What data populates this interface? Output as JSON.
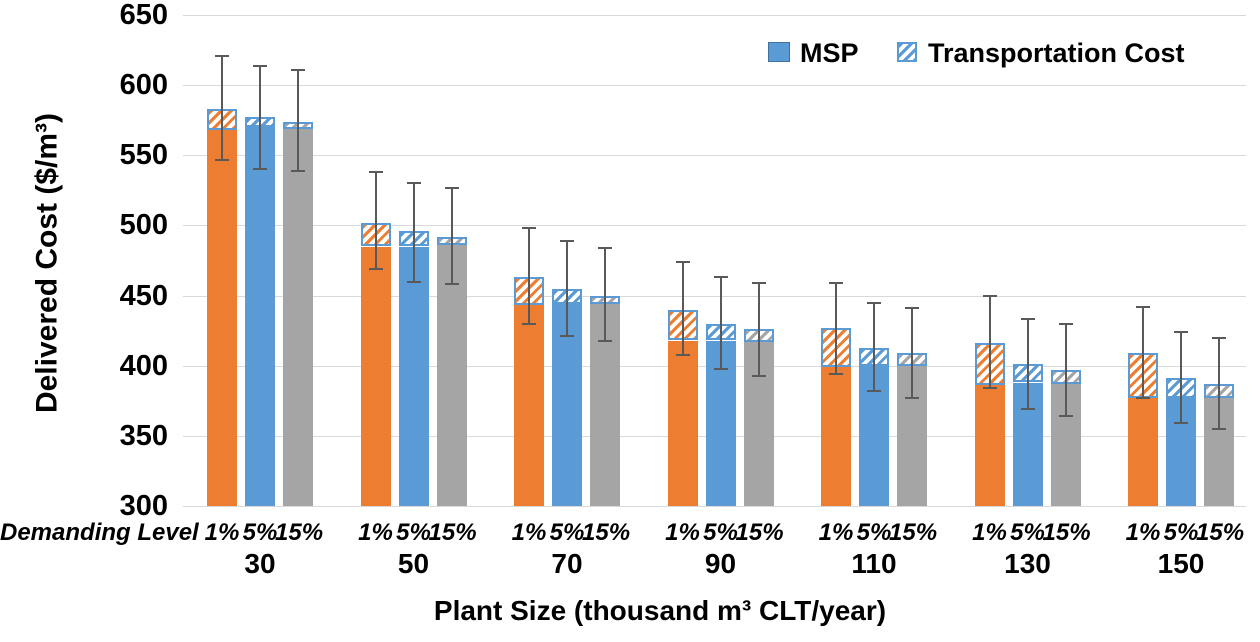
{
  "y_axis": {
    "title": "Delivered Cost ($/m³)",
    "min": 300,
    "max": 650,
    "tick_labels": [
      "650",
      "600",
      "550",
      "500",
      "450",
      "400",
      "350",
      "300"
    ]
  },
  "x_axis": {
    "title": "Plant Size (thousand m³ CLT/year)",
    "demanding_level_label": "Demanding Level",
    "categories": [
      "30",
      "50",
      "70",
      "90",
      "110",
      "130",
      "150"
    ]
  },
  "legend": {
    "items": [
      {
        "label": "MSP",
        "style": "solid"
      },
      {
        "label": "Transportation Cost",
        "style": "hatch"
      }
    ]
  },
  "colors": {
    "demand_1pct": "#ED7D31",
    "demand_5pct": "#5B9BD5",
    "demand_15pct": "#A5A5A5",
    "hatch_border": "#5B9BD5",
    "legend_solid_fill": "#5B9BD5",
    "legend_solid_border": "#41719C",
    "error_bar": "#595959",
    "gridline": "#D9D9D9",
    "text": "#000000"
  },
  "chart_data": {
    "type": "bar",
    "stacked": true,
    "unit": "$/m³",
    "ylabel": "Delivered Cost ($/m³)",
    "xlabel": "Plant Size (thousand m³ CLT/year)",
    "ylim": [
      300,
      650
    ],
    "grid": true,
    "legend_position": "top-right",
    "demanding_levels": [
      "1%",
      "5%",
      "15%"
    ],
    "series_meaning": "Each plant size has three stacked bars (demanding level 1%, 5%, 15%); stack = MSP + Transportation Cost; whiskers = error range on total delivered cost",
    "groups": [
      {
        "plant_size": "30",
        "bars": [
          {
            "demanding_level": "1%",
            "msp": 568,
            "transportation_cost": 15,
            "total": 583,
            "error_low": 547,
            "error_high": 621
          },
          {
            "demanding_level": "5%",
            "msp": 570,
            "transportation_cost": 7,
            "total": 577,
            "error_low": 540,
            "error_high": 614
          },
          {
            "demanding_level": "15%",
            "msp": 569,
            "transportation_cost": 5,
            "total": 574,
            "error_low": 539,
            "error_high": 611
          }
        ]
      },
      {
        "plant_size": "50",
        "bars": [
          {
            "demanding_level": "1%",
            "msp": 485,
            "transportation_cost": 17,
            "total": 502,
            "error_low": 469,
            "error_high": 538
          },
          {
            "demanding_level": "5%",
            "msp": 485,
            "transportation_cost": 11,
            "total": 496,
            "error_low": 460,
            "error_high": 530
          },
          {
            "demanding_level": "15%",
            "msp": 486,
            "transportation_cost": 6,
            "total": 492,
            "error_low": 458,
            "error_high": 527
          }
        ]
      },
      {
        "plant_size": "70",
        "bars": [
          {
            "demanding_level": "1%",
            "msp": 443,
            "transportation_cost": 20,
            "total": 463,
            "error_low": 430,
            "error_high": 498
          },
          {
            "demanding_level": "5%",
            "msp": 444,
            "transportation_cost": 11,
            "total": 455,
            "error_low": 421,
            "error_high": 489
          },
          {
            "demanding_level": "15%",
            "msp": 444,
            "transportation_cost": 6,
            "total": 450,
            "error_low": 418,
            "error_high": 484
          }
        ]
      },
      {
        "plant_size": "90",
        "bars": [
          {
            "demanding_level": "1%",
            "msp": 418,
            "transportation_cost": 22,
            "total": 440,
            "error_low": 408,
            "error_high": 474
          },
          {
            "demanding_level": "5%",
            "msp": 418,
            "transportation_cost": 12,
            "total": 430,
            "error_low": 398,
            "error_high": 463
          },
          {
            "demanding_level": "15%",
            "msp": 417,
            "transportation_cost": 9,
            "total": 426,
            "error_low": 393,
            "error_high": 459
          }
        ]
      },
      {
        "plant_size": "110",
        "bars": [
          {
            "demanding_level": "1%",
            "msp": 399,
            "transportation_cost": 28,
            "total": 427,
            "error_low": 394,
            "error_high": 459
          },
          {
            "demanding_level": "5%",
            "msp": 400,
            "transportation_cost": 13,
            "total": 413,
            "error_low": 382,
            "error_high": 445
          },
          {
            "demanding_level": "15%",
            "msp": 400,
            "transportation_cost": 9,
            "total": 409,
            "error_low": 377,
            "error_high": 441
          }
        ]
      },
      {
        "plant_size": "130",
        "bars": [
          {
            "demanding_level": "1%",
            "msp": 386,
            "transportation_cost": 30,
            "total": 416,
            "error_low": 384,
            "error_high": 450
          },
          {
            "demanding_level": "5%",
            "msp": 388,
            "transportation_cost": 13,
            "total": 401,
            "error_low": 369,
            "error_high": 433
          },
          {
            "demanding_level": "15%",
            "msp": 387,
            "transportation_cost": 10,
            "total": 397,
            "error_low": 364,
            "error_high": 430
          }
        ]
      },
      {
        "plant_size": "150",
        "bars": [
          {
            "demanding_level": "1%",
            "msp": 377,
            "transportation_cost": 32,
            "total": 409,
            "error_low": 377,
            "error_high": 442
          },
          {
            "demanding_level": "5%",
            "msp": 377,
            "transportation_cost": 14,
            "total": 391,
            "error_low": 359,
            "error_high": 424
          },
          {
            "demanding_level": "15%",
            "msp": 377,
            "transportation_cost": 10,
            "total": 387,
            "error_low": 355,
            "error_high": 420
          }
        ]
      }
    ]
  }
}
